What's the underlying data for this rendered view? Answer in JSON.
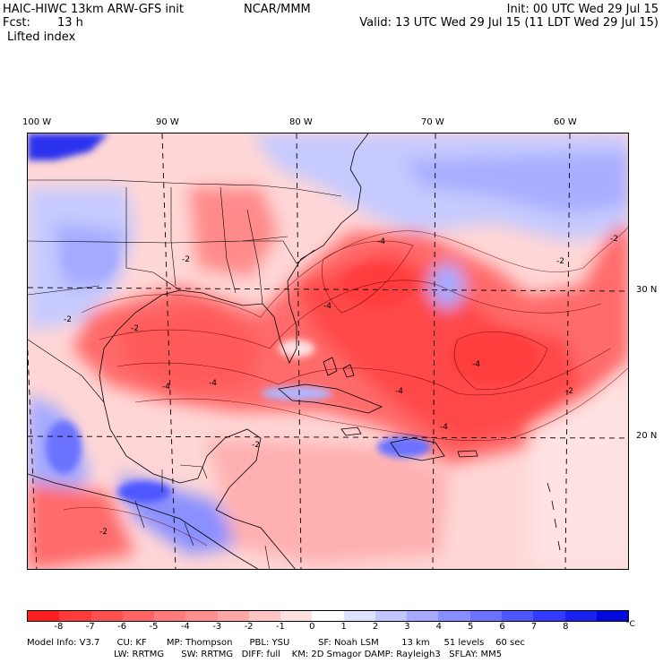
{
  "header": {
    "model": "HAIC-HIWC 13km ARW-GFS init",
    "org": "NCAR/MMM",
    "init": "Init: 00 UTC Wed 29 Jul 15",
    "fcst_label": "Fcst:",
    "fcst_value": "13 h",
    "valid": "Valid: 13 UTC Wed 29 Jul 15 (11 LDT Wed 29 Jul 15)",
    "field": "Lifted index"
  },
  "map": {
    "lon_labels": [
      "100 W",
      "90 W",
      "80 W",
      "70 W",
      "60 W"
    ],
    "lat_labels": [
      "30 N",
      "20 N"
    ],
    "contour_labels": [
      "-2",
      "-4",
      "-2",
      "-4",
      "-4",
      "-4",
      "-2",
      "-2",
      "-2",
      "-4",
      "-2",
      "-4",
      "-2",
      "-4",
      "-2"
    ]
  },
  "colorbar": {
    "colors": [
      "#ff1e1e",
      "#ff3a3a",
      "#ff5050",
      "#ff6464",
      "#ff7a7a",
      "#ff9090",
      "#ffa8a8",
      "#ffc4c4",
      "#ffe0e0",
      "#ffffff",
      "#dfe2ff",
      "#c2c6ff",
      "#a5aaff",
      "#888eff",
      "#6b72ff",
      "#4e56ff",
      "#323aff",
      "#1a22f0",
      "#0008dd"
    ],
    "labels": [
      "-8",
      "-7",
      "-6",
      "-5",
      "-4",
      "-3",
      "-2",
      "-1",
      "0",
      "1",
      "2",
      "3",
      "4",
      "5",
      "6",
      "7",
      "8"
    ],
    "unit": "°C"
  },
  "model_info": {
    "line1": "Model Info: V3.7      CU: KF       MP: Thompson      PBL: YSU          SF: Noah LSM        13 km     51 levels    60 sec",
    "line2": "LW: RRTMG      SW: RRTMG   DIFF: full    KM: 2D Smagor DAMP: Rayleigh3   SFLAY: MM5"
  }
}
